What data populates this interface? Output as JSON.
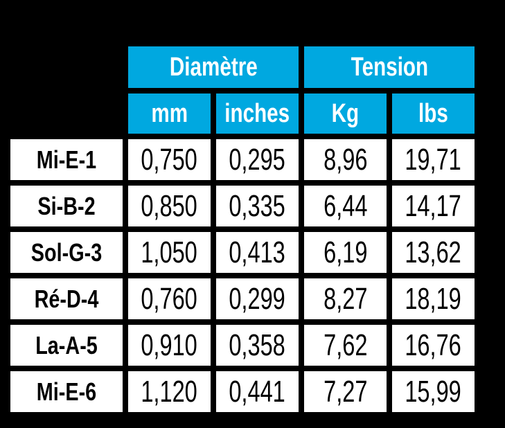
{
  "colors": {
    "background": "#000000",
    "header_bg": "#00A8E0",
    "header_text": "#FFFFFF",
    "cell_bg": "#FFFFFF",
    "cell_text": "#000000"
  },
  "chart_data": {
    "type": "table",
    "column_groups": [
      {
        "label": "Diamètre",
        "columns": [
          "mm",
          "inches"
        ]
      },
      {
        "label": "Tension",
        "columns": [
          "Kg",
          "lbs"
        ]
      }
    ],
    "rows": [
      {
        "label": "Mi-E-1",
        "mm": "0,750",
        "inches": "0,295",
        "kg": "8,96",
        "lbs": "19,71"
      },
      {
        "label": "Si-B-2",
        "mm": "0,850",
        "inches": "0,335",
        "kg": "6,44",
        "lbs": "14,17"
      },
      {
        "label": "Sol-G-3",
        "mm": "1,050",
        "inches": "0,413",
        "kg": "6,19",
        "lbs": "13,62"
      },
      {
        "label": "Ré-D-4",
        "mm": "0,760",
        "inches": "0,299",
        "kg": "8,27",
        "lbs": "18,19"
      },
      {
        "label": "La-A-5",
        "mm": "0,910",
        "inches": "0,358",
        "kg": "7,62",
        "lbs": "16,76"
      },
      {
        "label": "Mi-E-6",
        "mm": "1,120",
        "inches": "0,441",
        "kg": "7,27",
        "lbs": "15,99"
      }
    ]
  }
}
